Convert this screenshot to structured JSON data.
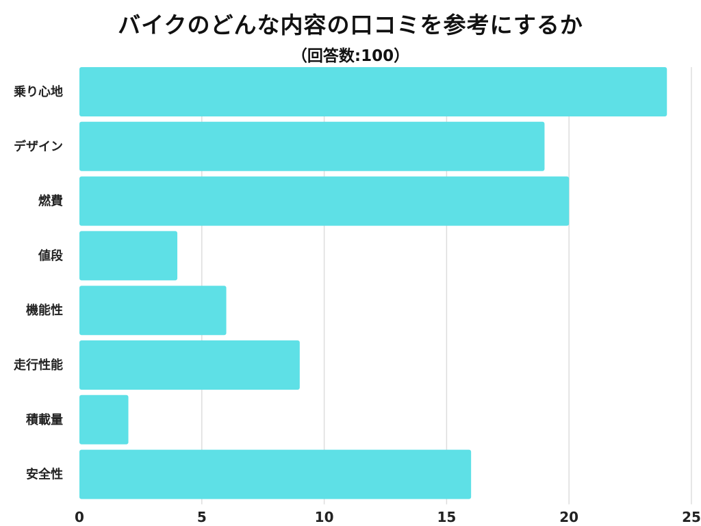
{
  "chart_data": {
    "type": "bar",
    "orientation": "horizontal",
    "title": "バイクのどんな内容の口コミを参考にするか",
    "subtitle": "（回答数:100）",
    "categories": [
      "乗り心地",
      "デザイン",
      "燃費",
      "値段",
      "機能性",
      "走行性能",
      "積載量",
      "安全性"
    ],
    "values": [
      24,
      19,
      20,
      4,
      6,
      9,
      2,
      16
    ],
    "xlim": [
      0,
      25
    ],
    "xticks": [
      0,
      5,
      10,
      15,
      20,
      25
    ],
    "grid": true,
    "bar_color": "#5ee0e6",
    "grid_color": "#dddddd"
  }
}
